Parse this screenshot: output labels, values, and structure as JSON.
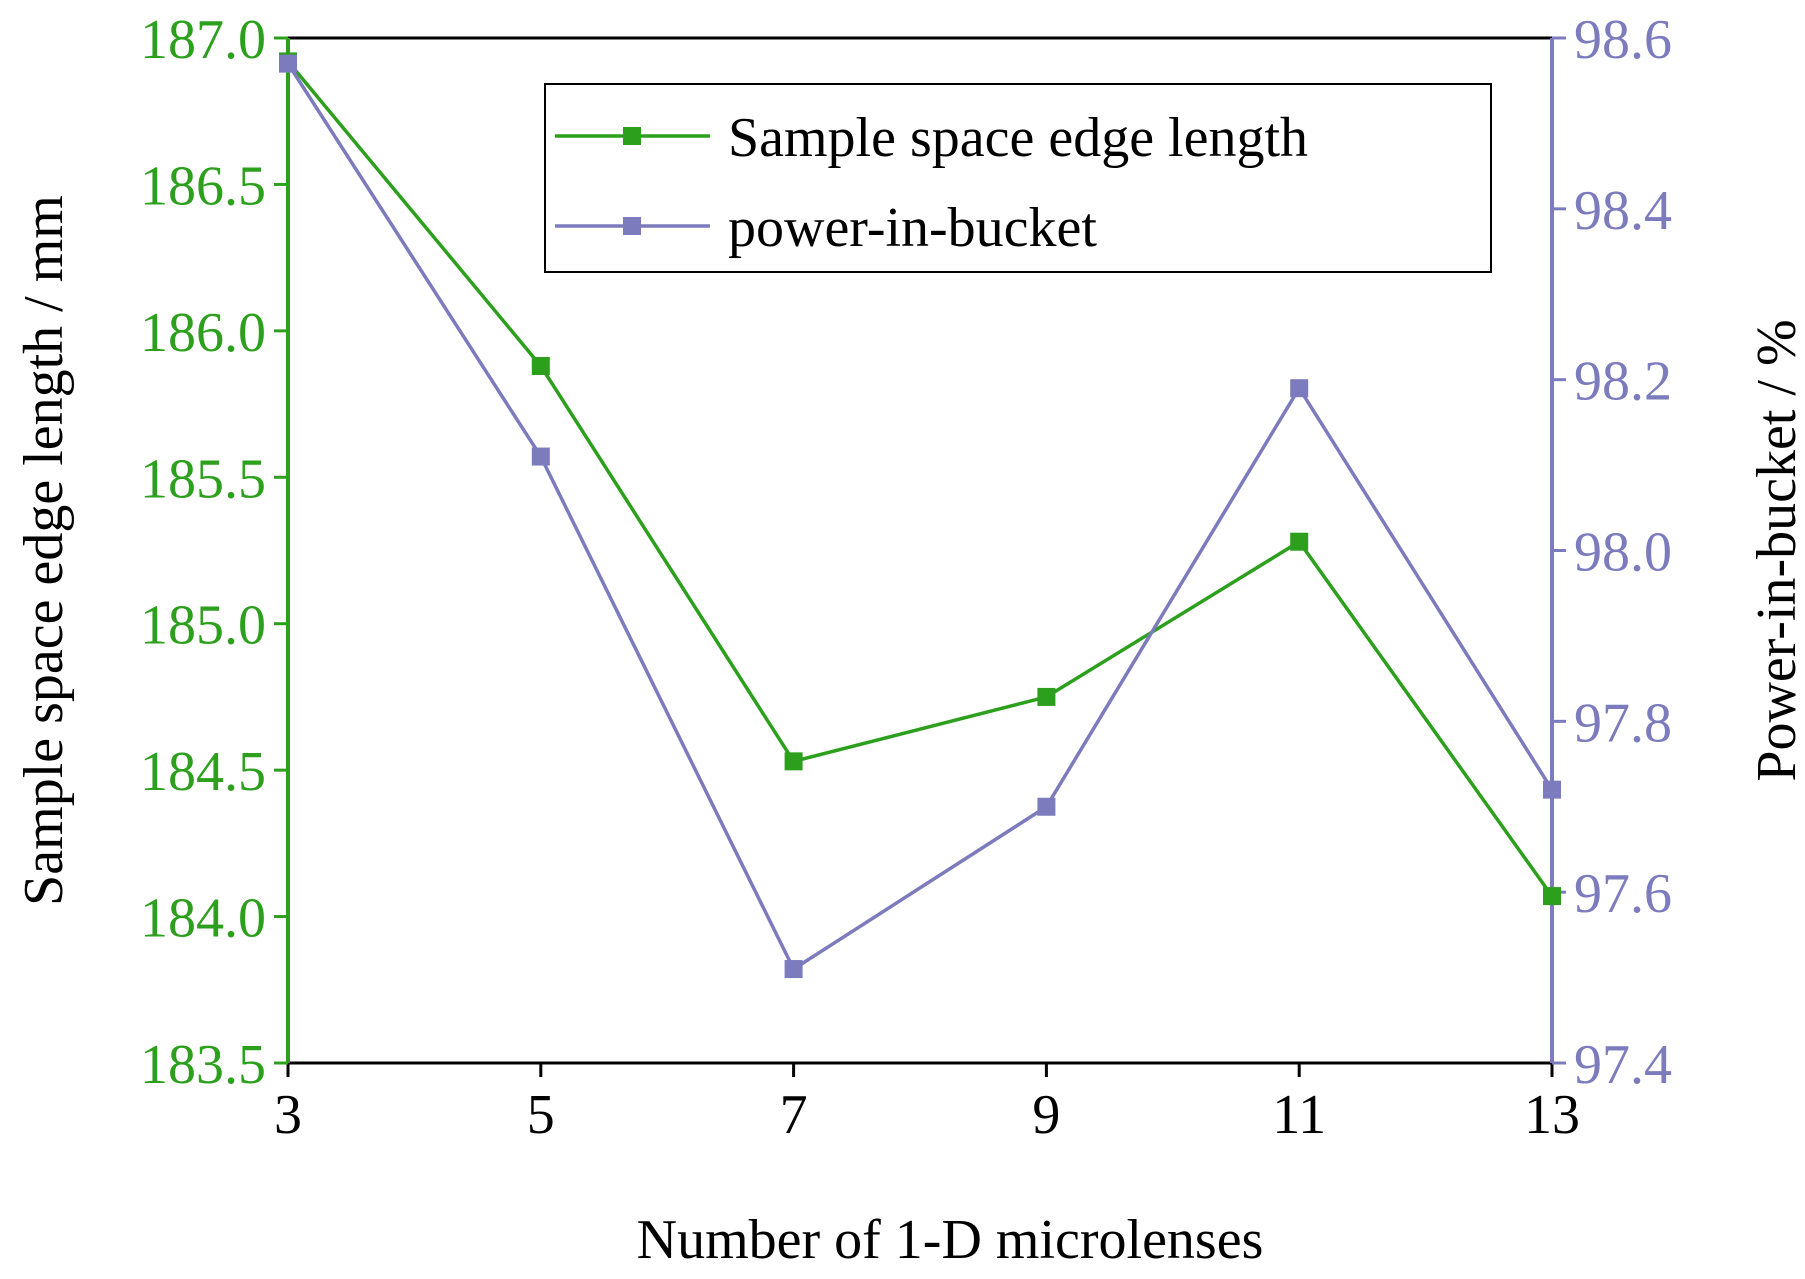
{
  "chart_data": {
    "type": "line",
    "x": [
      3,
      5,
      7,
      9,
      11,
      13
    ],
    "xlim": [
      3,
      13
    ],
    "xticks": [
      3,
      5,
      7,
      9,
      11,
      13
    ],
    "xlabel": "Number of 1-D microlenses",
    "series": [
      {
        "name": "Sample space edge length",
        "axis": "left",
        "color": "#2ca01c",
        "marker": "square",
        "values": [
          186.92,
          185.88,
          184.53,
          184.75,
          185.28,
          184.07
        ]
      },
      {
        "name": "power-in-bucket",
        "axis": "right",
        "color": "#7b7bbd",
        "marker": "square",
        "values": [
          98.57,
          98.11,
          97.51,
          97.7,
          98.19,
          97.72
        ]
      }
    ],
    "y_left": {
      "label": "Sample space edge length / mm",
      "range": [
        183.5,
        187.0
      ],
      "ticks": [
        "183.5",
        "184.0",
        "184.5",
        "185.0",
        "185.5",
        "186.0",
        "186.5",
        "187.0"
      ],
      "color": "#2ca01c"
    },
    "y_right": {
      "label": "Power-in-bucket / %",
      "range": [
        97.4,
        98.6
      ],
      "ticks": [
        "97.4",
        "97.6",
        "97.8",
        "98.0",
        "98.2",
        "98.4",
        "98.6"
      ],
      "color": "#7b7bbd"
    },
    "legend": {
      "placement": "top-right",
      "entries": [
        "Sample space edge length",
        "power-in-bucket"
      ]
    },
    "grid": false
  }
}
